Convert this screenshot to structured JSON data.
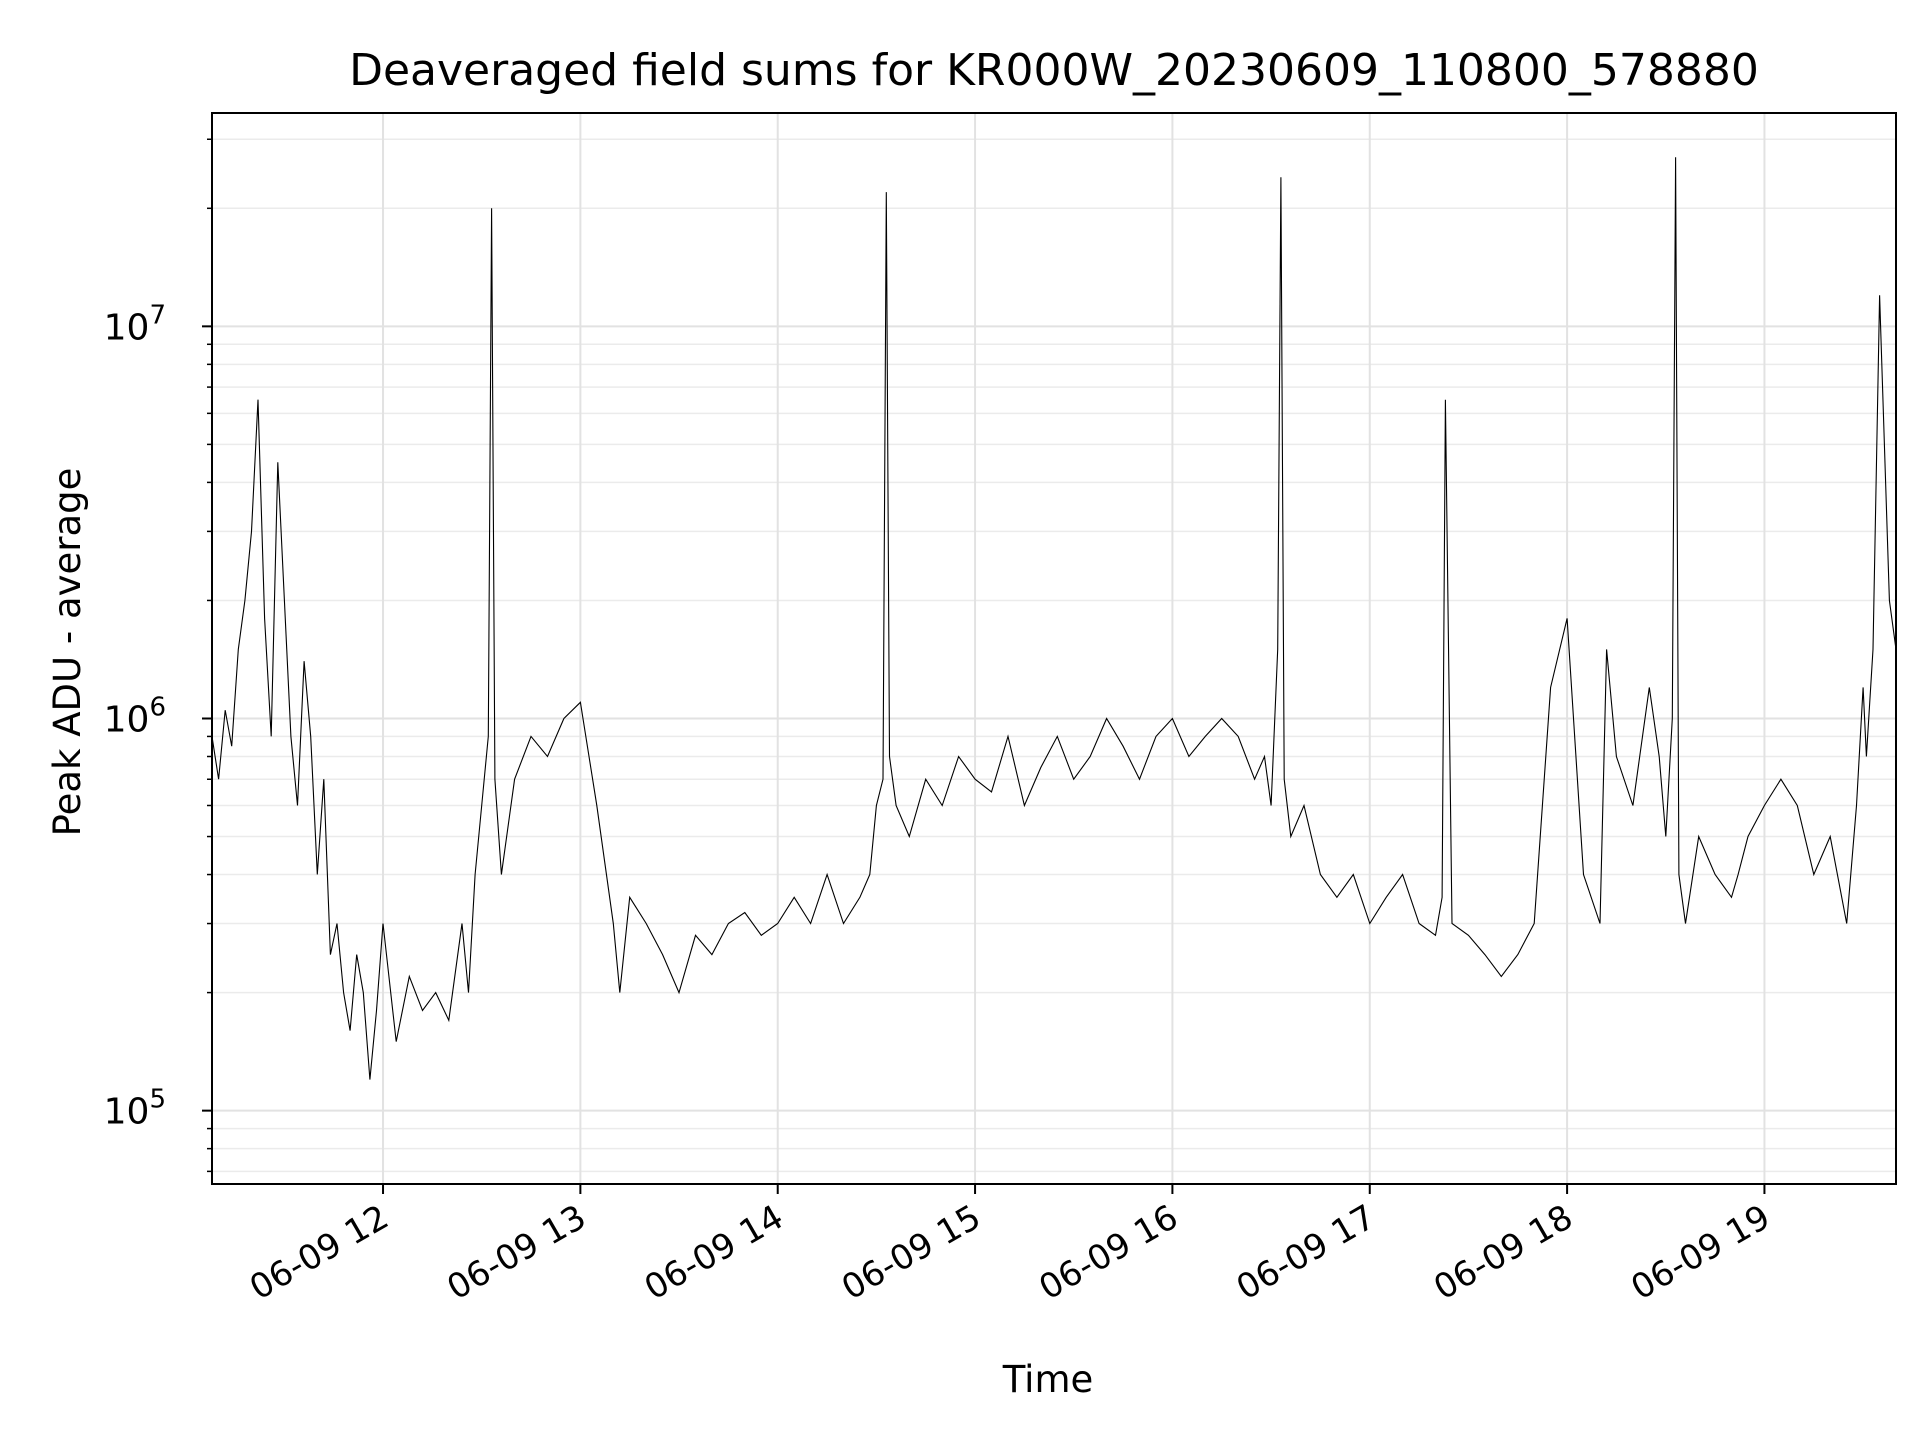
{
  "chart_data": {
    "type": "line",
    "title": "Deaveraged field sums for KR000W_20230609_110800_578880",
    "xlabel": "Time",
    "ylabel": "Peak ADU - average",
    "yscale": "log",
    "grid": true,
    "grid_minor": true,
    "xlim": [
      "2023-06-09 11:08",
      "2023-06-09 19:40"
    ],
    "ylim": [
      65000,
      35000000
    ],
    "x_ticks": [
      "2023-06-09 12:00",
      "2023-06-09 13:00",
      "2023-06-09 14:00",
      "2023-06-09 15:00",
      "2023-06-09 16:00",
      "2023-06-09 17:00",
      "2023-06-09 18:00",
      "2023-06-09 19:00"
    ],
    "x_tick_labels": [
      "06-09 12",
      "06-09 13",
      "06-09 14",
      "06-09 15",
      "06-09 16",
      "06-09 17",
      "06-09 18",
      "06-09 19"
    ],
    "y_ticks": [
      100000,
      1000000,
      10000000
    ],
    "y_tick_labels": [
      {
        "base": "10",
        "exp": "5"
      },
      {
        "base": "10",
        "exp": "6"
      },
      {
        "base": "10",
        "exp": "7"
      }
    ],
    "series": [
      {
        "color": "#000000",
        "x": [
          "2023-06-09 11:08",
          "2023-06-09 11:10",
          "2023-06-09 11:12",
          "2023-06-09 11:14",
          "2023-06-09 11:16",
          "2023-06-09 11:18",
          "2023-06-09 11:20",
          "2023-06-09 11:22",
          "2023-06-09 11:24",
          "2023-06-09 11:26",
          "2023-06-09 11:28",
          "2023-06-09 11:30",
          "2023-06-09 11:32",
          "2023-06-09 11:34",
          "2023-06-09 11:36",
          "2023-06-09 11:38",
          "2023-06-09 11:40",
          "2023-06-09 11:42",
          "2023-06-09 11:44",
          "2023-06-09 11:46",
          "2023-06-09 11:48",
          "2023-06-09 11:50",
          "2023-06-09 11:52",
          "2023-06-09 11:54",
          "2023-06-09 11:56",
          "2023-06-09 11:58",
          "2023-06-09 12:00",
          "2023-06-09 12:04",
          "2023-06-09 12:08",
          "2023-06-09 12:12",
          "2023-06-09 12:16",
          "2023-06-09 12:20",
          "2023-06-09 12:24",
          "2023-06-09 12:26",
          "2023-06-09 12:28",
          "2023-06-09 12:30",
          "2023-06-09 12:32",
          "2023-06-09 12:33",
          "2023-06-09 12:34",
          "2023-06-09 12:36",
          "2023-06-09 12:40",
          "2023-06-09 12:45",
          "2023-06-09 12:50",
          "2023-06-09 12:55",
          "2023-06-09 13:00",
          "2023-06-09 13:05",
          "2023-06-09 13:10",
          "2023-06-09 13:12",
          "2023-06-09 13:15",
          "2023-06-09 13:20",
          "2023-06-09 13:25",
          "2023-06-09 13:30",
          "2023-06-09 13:35",
          "2023-06-09 13:40",
          "2023-06-09 13:45",
          "2023-06-09 13:50",
          "2023-06-09 13:55",
          "2023-06-09 14:00",
          "2023-06-09 14:05",
          "2023-06-09 14:10",
          "2023-06-09 14:15",
          "2023-06-09 14:20",
          "2023-06-09 14:25",
          "2023-06-09 14:28",
          "2023-06-09 14:30",
          "2023-06-09 14:32",
          "2023-06-09 14:33",
          "2023-06-09 14:34",
          "2023-06-09 14:36",
          "2023-06-09 14:40",
          "2023-06-09 14:45",
          "2023-06-09 14:50",
          "2023-06-09 14:55",
          "2023-06-09 15:00",
          "2023-06-09 15:05",
          "2023-06-09 15:10",
          "2023-06-09 15:15",
          "2023-06-09 15:20",
          "2023-06-09 15:25",
          "2023-06-09 15:30",
          "2023-06-09 15:35",
          "2023-06-09 15:40",
          "2023-06-09 15:45",
          "2023-06-09 15:50",
          "2023-06-09 15:55",
          "2023-06-09 16:00",
          "2023-06-09 16:05",
          "2023-06-09 16:10",
          "2023-06-09 16:15",
          "2023-06-09 16:20",
          "2023-06-09 16:25",
          "2023-06-09 16:28",
          "2023-06-09 16:30",
          "2023-06-09 16:32",
          "2023-06-09 16:33",
          "2023-06-09 16:34",
          "2023-06-09 16:36",
          "2023-06-09 16:40",
          "2023-06-09 16:45",
          "2023-06-09 16:50",
          "2023-06-09 16:55",
          "2023-06-09 17:00",
          "2023-06-09 17:05",
          "2023-06-09 17:10",
          "2023-06-09 17:15",
          "2023-06-09 17:20",
          "2023-06-09 17:22",
          "2023-06-09 17:23",
          "2023-06-09 17:25",
          "2023-06-09 17:30",
          "2023-06-09 17:35",
          "2023-06-09 17:40",
          "2023-06-09 17:45",
          "2023-06-09 17:50",
          "2023-06-09 17:55",
          "2023-06-09 18:00",
          "2023-06-09 18:05",
          "2023-06-09 18:10",
          "2023-06-09 18:12",
          "2023-06-09 18:15",
          "2023-06-09 18:20",
          "2023-06-09 18:25",
          "2023-06-09 18:28",
          "2023-06-09 18:30",
          "2023-06-09 18:32",
          "2023-06-09 18:33",
          "2023-06-09 18:34",
          "2023-06-09 18:36",
          "2023-06-09 18:40",
          "2023-06-09 18:45",
          "2023-06-09 18:50",
          "2023-06-09 18:52",
          "2023-06-09 18:55",
          "2023-06-09 19:00",
          "2023-06-09 19:05",
          "2023-06-09 19:10",
          "2023-06-09 19:15",
          "2023-06-09 19:20",
          "2023-06-09 19:25",
          "2023-06-09 19:28",
          "2023-06-09 19:30",
          "2023-06-09 19:31",
          "2023-06-09 19:33",
          "2023-06-09 19:35",
          "2023-06-09 19:38",
          "2023-06-09 19:40"
        ],
        "y": [
          900000,
          700000,
          1050000,
          850000,
          1500000,
          2000000,
          3000000,
          6500000,
          1800000,
          900000,
          4500000,
          2000000,
          900000,
          600000,
          1400000,
          900000,
          400000,
          700000,
          250000,
          300000,
          200000,
          160000,
          250000,
          200000,
          120000,
          180000,
          300000,
          150000,
          220000,
          180000,
          200000,
          170000,
          300000,
          200000,
          400000,
          600000,
          900000,
          20000000,
          700000,
          400000,
          700000,
          900000,
          800000,
          1000000,
          1100000,
          600000,
          300000,
          200000,
          350000,
          300000,
          250000,
          200000,
          280000,
          250000,
          300000,
          320000,
          280000,
          300000,
          350000,
          300000,
          400000,
          300000,
          350000,
          400000,
          600000,
          700000,
          22000000,
          800000,
          600000,
          500000,
          700000,
          600000,
          800000,
          700000,
          650000,
          900000,
          600000,
          750000,
          900000,
          700000,
          800000,
          1000000,
          850000,
          700000,
          900000,
          1000000,
          800000,
          900000,
          1000000,
          900000,
          700000,
          800000,
          600000,
          1500000,
          24000000,
          700000,
          500000,
          600000,
          400000,
          350000,
          400000,
          300000,
          350000,
          400000,
          300000,
          280000,
          350000,
          6500000,
          300000,
          280000,
          250000,
          220000,
          250000,
          300000,
          1200000,
          1800000,
          400000,
          300000,
          1500000,
          800000,
          600000,
          1200000,
          800000,
          500000,
          1000000,
          27000000,
          400000,
          300000,
          500000,
          400000,
          350000,
          400000,
          500000,
          600000,
          700000,
          600000,
          400000,
          500000,
          300000,
          600000,
          1200000,
          800000,
          1500000,
          12000000,
          2000000,
          1500000
        ]
      }
    ]
  }
}
